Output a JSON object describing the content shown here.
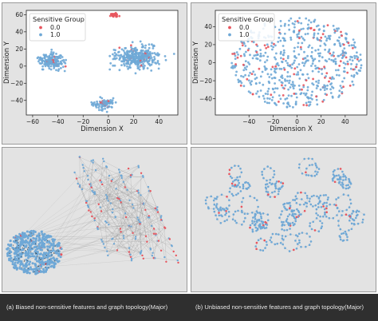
{
  "figure": {
    "captions": [
      "(a) Biased non-sensitive features and graph topology(Major)",
      "(b) Unbiased non-sensitive features and graph topology(Major)"
    ]
  },
  "colors": {
    "panel_background": "#e3e3e3",
    "plot_background": "#ffffff",
    "group_0": "#e8555e",
    "group_1": "#6fa8d6",
    "edges": "#8a8a8a",
    "caption_bar": "#2f2f2f"
  },
  "chart_data": [
    {
      "type": "scatter",
      "panel": "top-left",
      "title": "",
      "xlabel": "Dimension X",
      "ylabel": "Dimension Y",
      "xlim": [
        -65,
        55
      ],
      "ylim": [
        -57,
        65
      ],
      "xticks": [
        "−60",
        "−40",
        "−20",
        "0",
        "20",
        "40"
      ],
      "xtick_values": [
        -60,
        -40,
        -20,
        0,
        20,
        40
      ],
      "yticks": [
        "−40",
        "−20",
        "0",
        "20",
        "40",
        "60"
      ],
      "ytick_values": [
        -40,
        -20,
        0,
        20,
        40,
        60
      ],
      "grid": false,
      "legend": {
        "title": "Sensitive Group",
        "entries": [
          "0.0",
          "1.0"
        ],
        "placement": "top-left"
      },
      "series": [
        {
          "name": "0.0",
          "clusters": [
            {
              "center": [
                5,
                60
              ],
              "spread": [
                3.5,
                2.5
              ],
              "points": 34
            }
          ]
        },
        {
          "name": "1.0",
          "clusters": [
            {
              "center": [
                -45,
                6
              ],
              "spread": [
                9,
                9
              ],
              "points": 170
            },
            {
              "center": [
                22,
                10
              ],
              "spread": [
                18,
                12
              ],
              "points": 330
            },
            {
              "center": [
                -3,
                -44
              ],
              "spread": [
                7,
                6
              ],
              "points": 100
            }
          ]
        }
      ],
      "red_fraction_in_blue_clusters": 0.06
    },
    {
      "type": "scatter",
      "panel": "top-right",
      "title": "",
      "xlabel": "Dimension X",
      "ylabel": "Dimension Y",
      "xlim": [
        -68,
        58
      ],
      "ylim": [
        -58,
        58
      ],
      "xticks": [
        "−40",
        "−20",
        "0",
        "20",
        "40"
      ],
      "xtick_values": [
        -40,
        -20,
        0,
        20,
        40
      ],
      "yticks": [
        "−40",
        "−20",
        "0",
        "20",
        "40"
      ],
      "ytick_values": [
        -40,
        -20,
        0,
        20,
        40
      ],
      "grid": false,
      "legend": {
        "title": "Sensitive Group",
        "entries": [
          "0.0",
          "1.0"
        ],
        "placement": "top-left"
      },
      "series": [
        {
          "name": "0.0",
          "distribution": "scattered throughout",
          "fraction": 0.12
        },
        {
          "name": "1.0",
          "distribution": "single diffuse cloud",
          "center": [
            0,
            0
          ],
          "spread": [
            55,
            50
          ],
          "points": 620
        }
      ]
    },
    {
      "type": "graph",
      "panel": "bottom-left",
      "components": [
        {
          "shape": "dense blob",
          "center": [
            0.17,
            0.72
          ],
          "radius": [
            0.15,
            0.15
          ],
          "nodes": 480,
          "red_fraction": 0.02
        },
        {
          "shape": "band structure",
          "bands": 7,
          "span": [
            [
              0.35,
              0.88
            ],
            [
              0.05,
              0.82
            ]
          ],
          "nodes": 190,
          "red_fraction": 0.35
        }
      ]
    },
    {
      "type": "graph",
      "panel": "bottom-right",
      "components": [
        {
          "shape": "loopy mesh",
          "center": [
            0.5,
            0.42
          ],
          "radius": [
            0.4,
            0.36
          ],
          "nodes": 520,
          "red_fraction": 0.07
        }
      ]
    }
  ]
}
